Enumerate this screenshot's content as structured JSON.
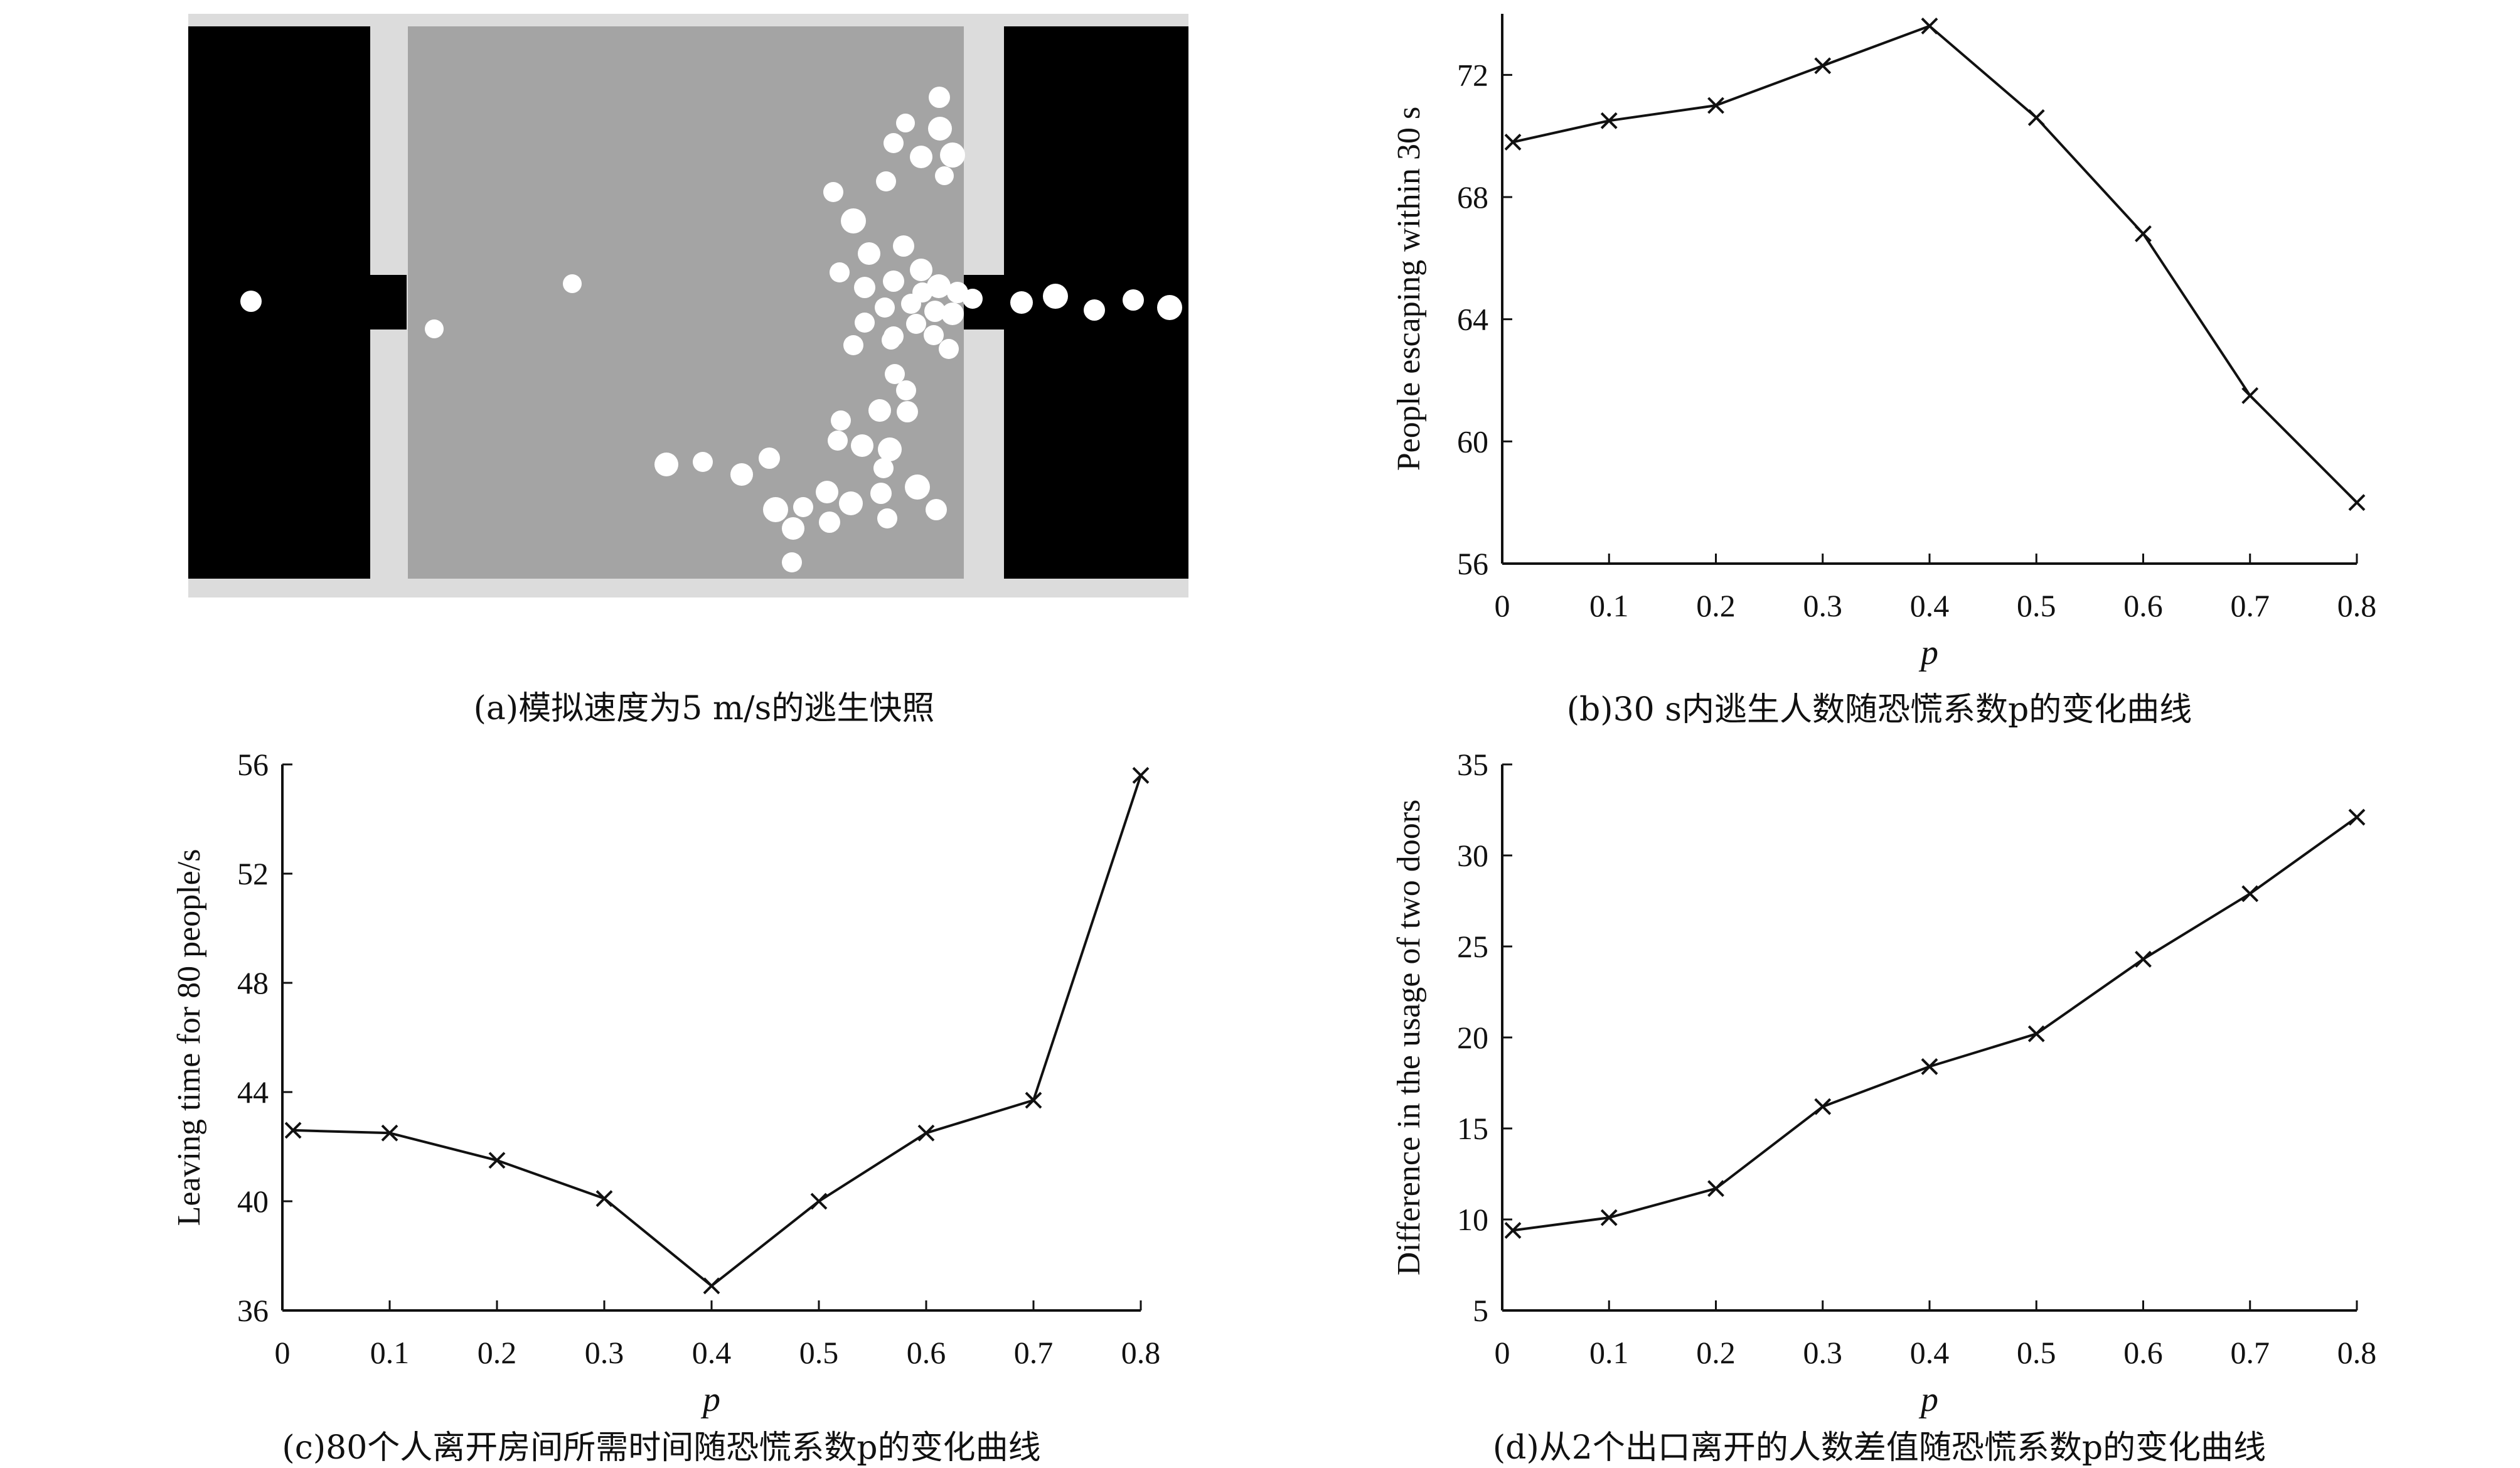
{
  "panels": {
    "a": {
      "caption": "(a)模拟速度为5 m/s的逃生快照",
      "colors": {
        "wall": "#000000",
        "corridor": "#dcdcdc",
        "room": "#a4a4a4",
        "person": "#ffffff"
      }
    }
  },
  "chart_data": [
    {
      "id": "b",
      "type": "line",
      "caption": "(b)30 s内逃生人数随恐慌系数p的变化曲线",
      "xlabel": "p",
      "ylabel": "People escaping within 30 s",
      "x": [
        0.01,
        0.1,
        0.2,
        0.3,
        0.4,
        0.5,
        0.6,
        0.7,
        0.8
      ],
      "values": [
        69.8,
        70.5,
        71.0,
        72.3,
        73.6,
        70.6,
        66.8,
        61.5,
        58.0
      ],
      "xlim": [
        0,
        0.8
      ],
      "ylim": [
        56,
        74
      ],
      "xticks": [
        "0",
        "0.1",
        "0.2",
        "0.3",
        "0.4",
        "0.5",
        "0.6",
        "0.7",
        "0.8"
      ],
      "yticks": [
        "56",
        "60",
        "64",
        "68",
        "72"
      ],
      "marker": "x",
      "color": "#111111",
      "grid": false,
      "legend": "none"
    },
    {
      "id": "c",
      "type": "line",
      "caption": "(c)80个人离开房间所需时间随恐慌系数p的变化曲线",
      "xlabel": "p",
      "ylabel": "Leaving time for 80 people/s",
      "x": [
        0.01,
        0.1,
        0.2,
        0.3,
        0.4,
        0.5,
        0.6,
        0.7,
        0.8
      ],
      "values": [
        42.6,
        42.5,
        41.5,
        40.1,
        36.9,
        40.0,
        42.5,
        43.7,
        55.6
      ],
      "xlim": [
        0,
        0.8
      ],
      "ylim": [
        36,
        56
      ],
      "xticks": [
        "0",
        "0.1",
        "0.2",
        "0.3",
        "0.4",
        "0.5",
        "0.6",
        "0.7",
        "0.8"
      ],
      "yticks": [
        "36",
        "40",
        "44",
        "48",
        "52",
        "56"
      ],
      "marker": "x",
      "color": "#111111",
      "grid": false,
      "legend": "none"
    },
    {
      "id": "d",
      "type": "line",
      "caption": "(d)从2个出口离开的人数差值随恐慌系数p的变化曲线",
      "xlabel": "p",
      "ylabel": "Difference in the usage of two doors",
      "x": [
        0.01,
        0.1,
        0.2,
        0.3,
        0.4,
        0.5,
        0.6,
        0.7,
        0.8
      ],
      "values": [
        9.4,
        10.1,
        11.7,
        16.2,
        18.4,
        20.2,
        24.3,
        27.9,
        32.1
      ],
      "xlim": [
        0,
        0.8
      ],
      "ylim": [
        5,
        35
      ],
      "xticks": [
        "0",
        "0.1",
        "0.2",
        "0.3",
        "0.4",
        "0.5",
        "0.6",
        "0.7",
        "0.8"
      ],
      "yticks": [
        "5",
        "10",
        "15",
        "20",
        "25",
        "30",
        "35"
      ],
      "marker": "x",
      "color": "#111111",
      "grid": false,
      "legend": "none"
    }
  ]
}
